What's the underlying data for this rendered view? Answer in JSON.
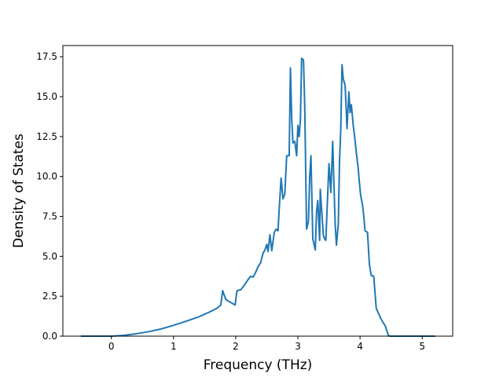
{
  "chart_data": {
    "type": "line",
    "title": "",
    "xlabel": "Frequency (THz)",
    "ylabel": "Density of States",
    "xlim": [
      -0.78,
      5.49
    ],
    "ylim": [
      0,
      18.2
    ],
    "xticks": [
      0,
      1,
      2,
      3,
      4,
      5
    ],
    "xtick_labels": [
      "0",
      "1",
      "2",
      "3",
      "4",
      "5"
    ],
    "yticks": [
      0,
      2.5,
      5,
      7.5,
      10,
      12.5,
      15,
      17.5
    ],
    "ytick_labels": [
      "0.0",
      "2.5",
      "5.0",
      "7.5",
      "10.0",
      "12.5",
      "15.0",
      "17.5"
    ],
    "grid": false,
    "legend": "none",
    "series": [
      {
        "color": "#1f77b4",
        "x": [
          -0.49,
          -0.3,
          -0.1,
          0.0,
          0.2,
          0.4,
          0.6,
          0.8,
          1.0,
          1.2,
          1.4,
          1.6,
          1.7,
          1.76,
          1.79,
          1.84,
          1.9,
          1.97,
          1.99,
          2.02,
          2.08,
          2.14,
          2.2,
          2.24,
          2.28,
          2.32,
          2.36,
          2.4,
          2.44,
          2.47,
          2.5,
          2.52,
          2.55,
          2.58,
          2.62,
          2.65,
          2.68,
          2.7,
          2.73,
          2.76,
          2.79,
          2.82,
          2.86,
          2.88,
          2.9,
          2.92,
          2.95,
          2.98,
          3.0,
          3.02,
          3.04,
          3.06,
          3.09,
          3.11,
          3.14,
          3.17,
          3.19,
          3.21,
          3.24,
          3.28,
          3.3,
          3.32,
          3.35,
          3.36,
          3.38,
          3.41,
          3.43,
          3.45,
          3.47,
          3.5,
          3.53,
          3.56,
          3.58,
          3.6,
          3.62,
          3.65,
          3.67,
          3.69,
          3.71,
          3.73,
          3.76,
          3.79,
          3.82,
          3.84,
          3.86,
          3.89,
          3.91,
          3.94,
          3.97,
          3.99,
          4.01,
          4.04,
          4.06,
          4.08,
          4.12,
          4.15,
          4.18,
          4.22,
          4.26,
          4.3,
          4.34,
          4.38,
          4.41,
          4.43,
          4.45,
          4.47,
          4.5,
          4.52,
          4.55,
          4.58,
          4.62,
          4.67,
          4.72,
          4.75,
          4.77,
          4.85,
          5.0,
          5.21
        ],
        "y": [
          0,
          0,
          0,
          0,
          0.05,
          0.15,
          0.28,
          0.45,
          0.68,
          0.93,
          1.2,
          1.55,
          1.75,
          1.95,
          2.85,
          2.3,
          2.15,
          2.0,
          1.95,
          2.85,
          2.9,
          3.2,
          3.55,
          3.75,
          3.7,
          4.0,
          4.35,
          4.6,
          5.2,
          5.4,
          5.75,
          5.3,
          6.35,
          5.35,
          6.5,
          6.7,
          6.6,
          8.0,
          9.9,
          8.6,
          8.9,
          11.3,
          11.3,
          16.8,
          13.7,
          12.1,
          12.2,
          11.3,
          13.2,
          12.5,
          13.5,
          17.4,
          17.3,
          14.4,
          6.7,
          7.2,
          10.0,
          11.3,
          6.1,
          5.4,
          7.8,
          8.5,
          6.0,
          9.2,
          8.0,
          6.3,
          6.1,
          6.0,
          8.0,
          10.8,
          9.0,
          12.2,
          9.5,
          7.0,
          5.7,
          7.0,
          11.0,
          13.0,
          17.0,
          16.1,
          15.7,
          13.0,
          15.3,
          14.0,
          14.5,
          13.2,
          12.6,
          11.5,
          10.5,
          9.6,
          8.8,
          8.2,
          7.5,
          6.6,
          6.5,
          4.5,
          3.8,
          3.75,
          1.75,
          1.4,
          1.05,
          0.8,
          0.6,
          0.35,
          0.1,
          0,
          0,
          0,
          0,
          0,
          0,
          0,
          0,
          0,
          0,
          0,
          0,
          0
        ]
      }
    ]
  }
}
